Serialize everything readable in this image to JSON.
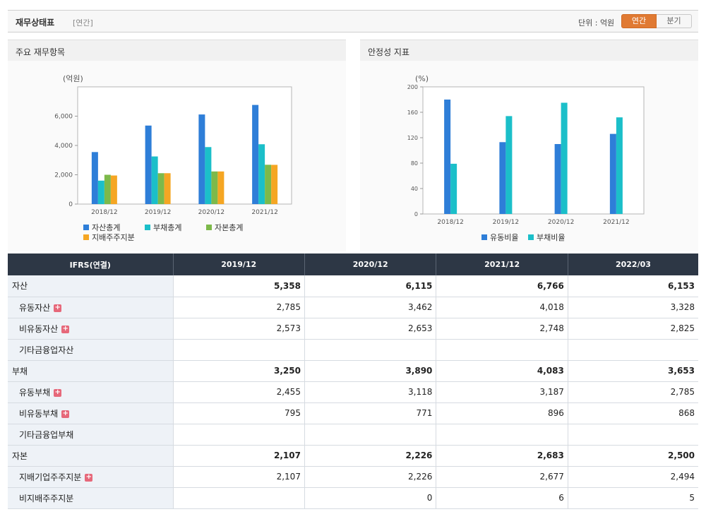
{
  "header": {
    "title": "재무상태표",
    "period": "[연간]",
    "unit": "단위 : 억원",
    "toggle_annual": "연간",
    "toggle_quarter": "분기"
  },
  "colors": {
    "accent": "#e07a33",
    "asset": "#2e7ed8",
    "liability": "#1bbfc9",
    "equity": "#7db94a",
    "controlling": "#f5a623",
    "table_header": "#2d3745"
  },
  "chart_data": [
    {
      "type": "bar",
      "panel_title": "주요 재무항목",
      "ylabel": "(억원)",
      "ylim": [
        0,
        8000
      ],
      "yticks": [
        0,
        2000,
        4000,
        6000
      ],
      "ytick_labels": [
        "0",
        "2,000",
        "4,000",
        "6,000"
      ],
      "categories": [
        "2018/12",
        "2019/12",
        "2020/12",
        "2021/12"
      ],
      "series": [
        {
          "name": "자산총계",
          "color": "#2e7ed8",
          "values": [
            3550,
            5358,
            6115,
            6766
          ]
        },
        {
          "name": "부채총계",
          "color": "#1bbfc9",
          "values": [
            1600,
            3250,
            3890,
            4083
          ]
        },
        {
          "name": "자본총계",
          "color": "#7db94a",
          "values": [
            2000,
            2107,
            2226,
            2683
          ]
        },
        {
          "name": "지배주주지분",
          "color": "#f5a623",
          "values": [
            1950,
            2107,
            2226,
            2677
          ]
        }
      ],
      "grid": false
    },
    {
      "type": "bar",
      "panel_title": "안정성 지표",
      "ylabel": "(%)",
      "ylim": [
        0,
        200
      ],
      "yticks": [
        0,
        40,
        80,
        120,
        160,
        200
      ],
      "ytick_labels": [
        "0",
        "40",
        "80",
        "120",
        "160",
        "200"
      ],
      "categories": [
        "2018/12",
        "2019/12",
        "2020/12",
        "2021/12"
      ],
      "series": [
        {
          "name": "유동비율",
          "color": "#2e7ed8",
          "values": [
            180,
            113,
            110,
            126
          ]
        },
        {
          "name": "부채비율",
          "color": "#1bbfc9",
          "values": [
            79,
            154,
            175,
            152
          ]
        }
      ],
      "grid": false
    }
  ],
  "table": {
    "headers": [
      "IFRS(연결)",
      "2019/12",
      "2020/12",
      "2021/12",
      "2022/03"
    ],
    "rows": [
      {
        "label": "자산",
        "level": 0,
        "bold": true,
        "plus": false,
        "values": [
          "5,358",
          "6,115",
          "6,766",
          "6,153"
        ]
      },
      {
        "label": "유동자산",
        "level": 1,
        "bold": false,
        "plus": true,
        "values": [
          "2,785",
          "3,462",
          "4,018",
          "3,328"
        ]
      },
      {
        "label": "비유동자산",
        "level": 1,
        "bold": false,
        "plus": true,
        "values": [
          "2,573",
          "2,653",
          "2,748",
          "2,825"
        ]
      },
      {
        "label": "기타금융업자산",
        "level": 1,
        "bold": false,
        "plus": false,
        "values": [
          "",
          "",
          "",
          ""
        ]
      },
      {
        "label": "부채",
        "level": 0,
        "bold": true,
        "plus": false,
        "values": [
          "3,250",
          "3,890",
          "4,083",
          "3,653"
        ]
      },
      {
        "label": "유동부채",
        "level": 1,
        "bold": false,
        "plus": true,
        "values": [
          "2,455",
          "3,118",
          "3,187",
          "2,785"
        ]
      },
      {
        "label": "비유동부채",
        "level": 1,
        "bold": false,
        "plus": true,
        "values": [
          "795",
          "771",
          "896",
          "868"
        ]
      },
      {
        "label": "기타금융업부채",
        "level": 1,
        "bold": false,
        "plus": false,
        "values": [
          "",
          "",
          "",
          ""
        ]
      },
      {
        "label": "자본",
        "level": 0,
        "bold": true,
        "plus": false,
        "values": [
          "2,107",
          "2,226",
          "2,683",
          "2,500"
        ]
      },
      {
        "label": "지배기업주주지분",
        "level": 1,
        "bold": false,
        "plus": true,
        "values": [
          "2,107",
          "2,226",
          "2,677",
          "2,494"
        ]
      },
      {
        "label": "비지배주주지분",
        "level": 1,
        "bold": false,
        "plus": false,
        "values": [
          "",
          "0",
          "6",
          "5"
        ]
      }
    ]
  }
}
